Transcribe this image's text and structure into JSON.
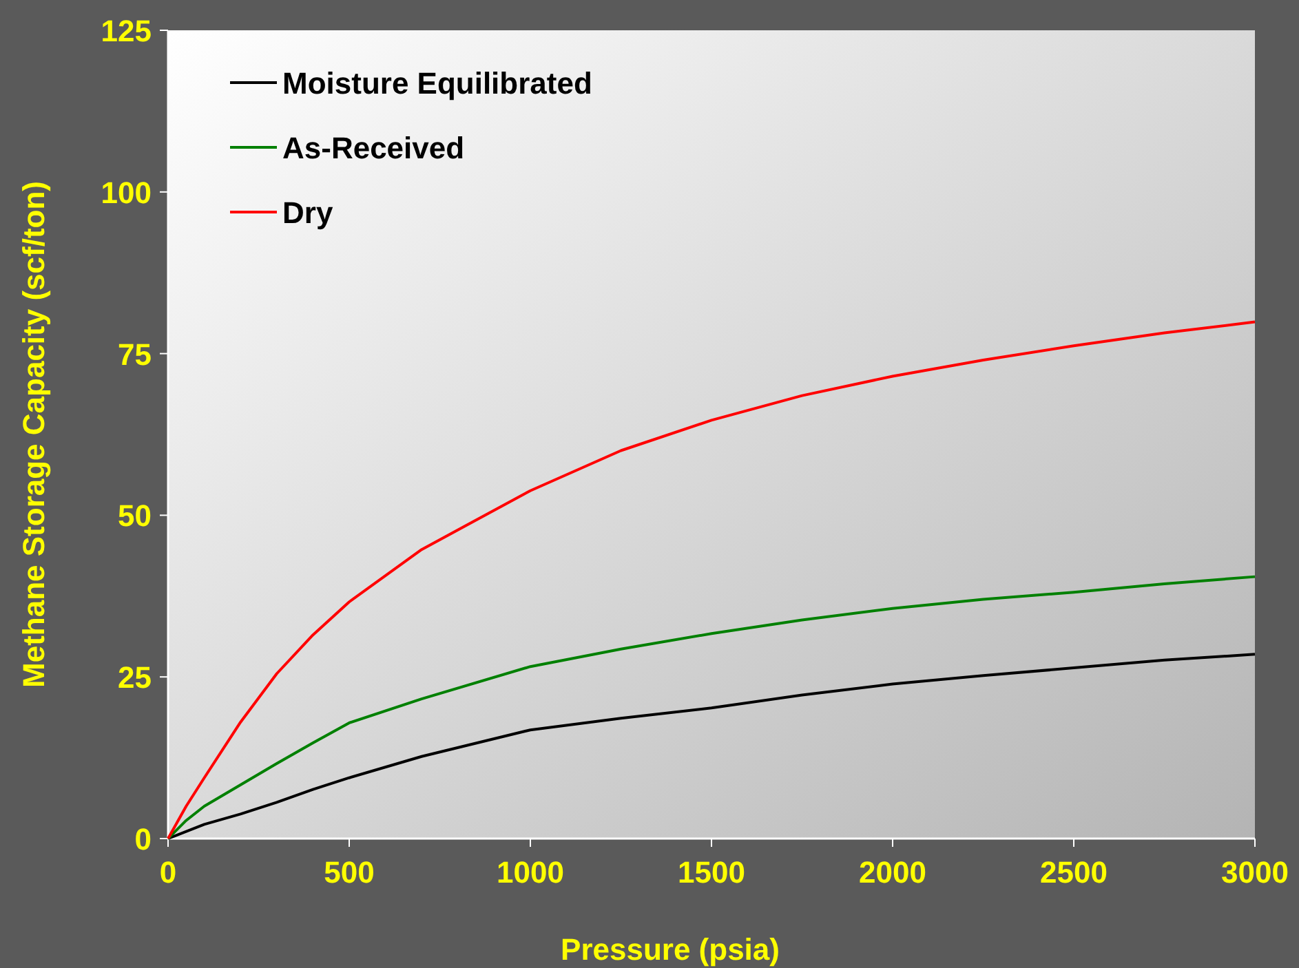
{
  "chart_data": {
    "type": "line",
    "xlabel": "Pressure (psia)",
    "ylabel": "Methane Storage Capacity (scf/ton)",
    "xlim": [
      0,
      3000
    ],
    "ylim": [
      0,
      125
    ],
    "xticks": [
      0,
      500,
      1000,
      1500,
      2000,
      2500,
      3000
    ],
    "yticks": [
      0,
      25,
      50,
      75,
      100,
      125
    ],
    "grid": false,
    "legend": "top left",
    "marker": "none",
    "line_style": "solid",
    "series": [
      {
        "name": "Moisture Equilibrated",
        "color": "#000000",
        "x": [
          0,
          100,
          200,
          300,
          400,
          500,
          700,
          1000,
          1250,
          1500,
          1750,
          2000,
          2250,
          2500,
          2750,
          3000
        ],
        "values": [
          0,
          2.2,
          3.8,
          5.6,
          7.6,
          9.4,
          12.7,
          16.8,
          18.6,
          20.2,
          22.2,
          23.9,
          25.2,
          26.4,
          27.6,
          28.5
        ]
      },
      {
        "name": "As-Received",
        "color": "#008000",
        "x": [
          0,
          50,
          100,
          200,
          300,
          400,
          500,
          700,
          1000,
          1250,
          1500,
          1750,
          2000,
          2250,
          2500,
          2750,
          3000
        ],
        "values": [
          0,
          2.8,
          5,
          8.3,
          11.6,
          14.8,
          17.9,
          21.6,
          26.6,
          29.3,
          31.7,
          33.8,
          35.6,
          37,
          38.1,
          39.4,
          40.5
        ]
      },
      {
        "name": "Dry",
        "color": "#ff0000",
        "x": [
          0,
          50,
          100,
          200,
          300,
          400,
          500,
          700,
          1000,
          1250,
          1500,
          1750,
          2000,
          2250,
          2500,
          2750,
          3000
        ],
        "values": [
          0,
          5,
          9.4,
          18,
          25.5,
          31.5,
          36.6,
          44.7,
          53.8,
          60,
          64.7,
          68.5,
          71.5,
          74,
          76.2,
          78.2,
          79.9
        ]
      }
    ]
  }
}
